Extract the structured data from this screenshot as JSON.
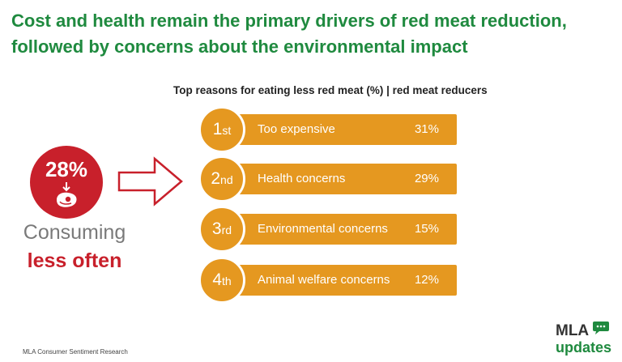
{
  "header": {
    "title_line1": "Cost and health remain the primary drivers of red meat reduction,",
    "title_line2": "followed by concerns about the environmental impact"
  },
  "stat": {
    "value": "28%",
    "icon": "meat-steak-down-icon",
    "label_line1": "Consuming",
    "label_line2": "less often"
  },
  "colors": {
    "title_green": "#1f8a3f",
    "stat_red": "#c8202b",
    "bar_orange": "#e59820",
    "arrow_red": "#c8202b",
    "label_gray": "#7a7a7a"
  },
  "chart_data": {
    "type": "bar",
    "orientation": "horizontal",
    "title": "Top reasons for eating less red meat (%) | red meat reducers",
    "categories": [
      "Too expensive",
      "Health concerns",
      "Environmental concerns",
      "Animal welfare concerns"
    ],
    "values": [
      31,
      29,
      15,
      12
    ],
    "value_labels": [
      "31%",
      "29%",
      "15%",
      "12%"
    ],
    "ranks": [
      {
        "num": "1",
        "suffix": "st"
      },
      {
        "num": "2",
        "suffix": "nd"
      },
      {
        "num": "3",
        "suffix": "rd"
      },
      {
        "num": "4",
        "suffix": "th"
      }
    ],
    "grid": false,
    "legend": "none"
  },
  "footer": {
    "source": "MLA Consumer Sentiment Research"
  },
  "logo": {
    "line1": "MLA",
    "line2": "updates"
  }
}
